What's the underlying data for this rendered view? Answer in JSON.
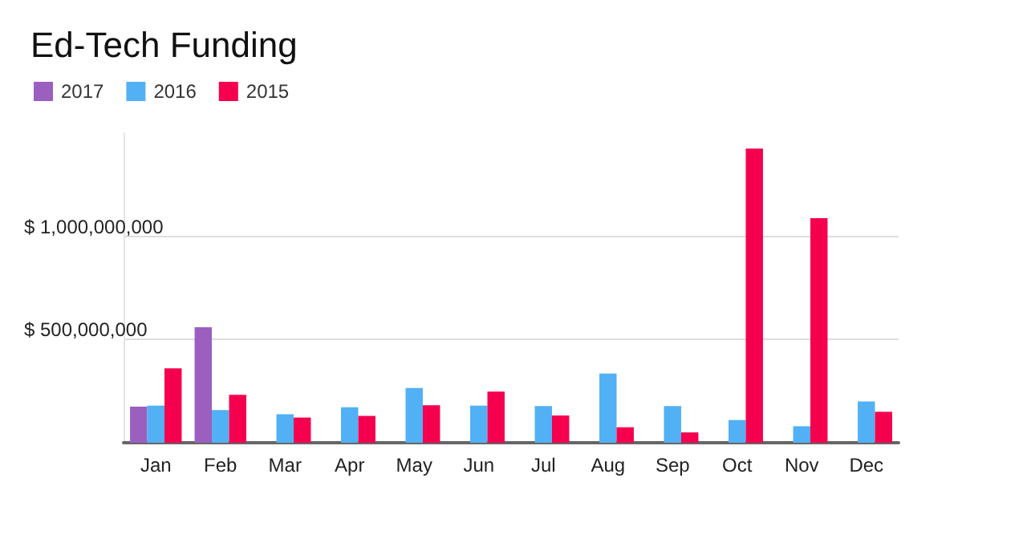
{
  "chart_data": {
    "type": "bar",
    "title": "Ed-Tech Funding",
    "categories": [
      "Jan",
      "Feb",
      "Mar",
      "Apr",
      "May",
      "Jun",
      "Jul",
      "Aug",
      "Sep",
      "Oct",
      "Nov",
      "Dec"
    ],
    "series": [
      {
        "name": "2017",
        "color": "#9b5fc0",
        "values": [
          175000000,
          560000000,
          null,
          null,
          null,
          null,
          null,
          null,
          null,
          null,
          null,
          null
        ]
      },
      {
        "name": "2016",
        "color": "#52b0f5",
        "values": [
          180000000,
          158000000,
          138000000,
          172000000,
          265000000,
          180000000,
          178000000,
          335000000,
          178000000,
          110000000,
          80000000,
          200000000
        ]
      },
      {
        "name": "2015",
        "color": "#f5004f",
        "values": [
          360000000,
          232000000,
          122000000,
          130000000,
          182000000,
          248000000,
          132000000,
          75000000,
          50000000,
          1425000000,
          1088000000,
          150000000
        ]
      }
    ],
    "yticks": [
      {
        "value": 0,
        "label": null
      },
      {
        "value": 500000000,
        "label": "$ 500,000,000"
      },
      {
        "value": 1000000000,
        "label": "$ 1,000,000,000"
      }
    ],
    "ylim": [
      0,
      1500000000
    ],
    "grid": "y",
    "legend": "top left"
  }
}
